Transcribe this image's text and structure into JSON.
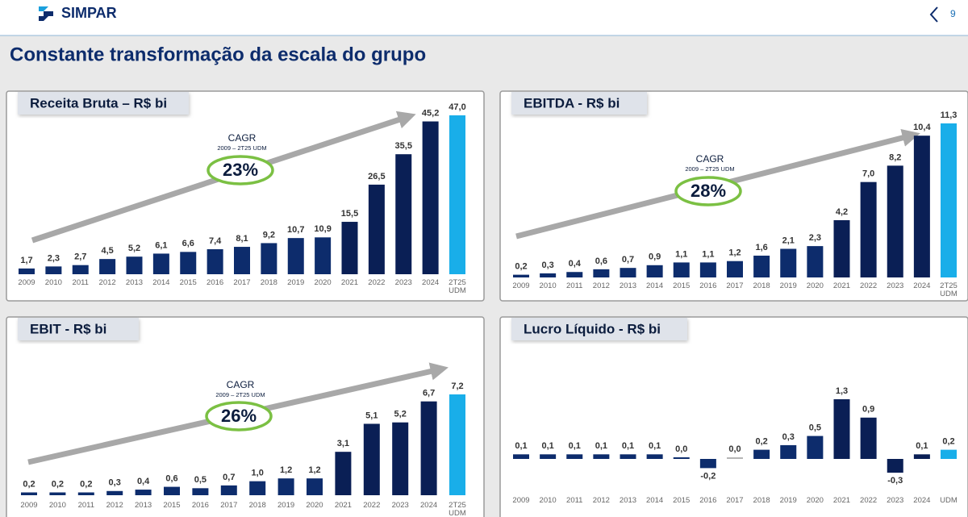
{
  "page": {
    "logo": "SIMPAR",
    "page_number": "9",
    "title": "Constante transformação da escala do grupo"
  },
  "chart_data": [
    {
      "type": "bar",
      "title": "Receita Bruta – R$ bi",
      "categories": [
        "2009",
        "2010",
        "2011",
        "2012",
        "2013",
        "2014",
        "2015",
        "2016",
        "2017",
        "2018",
        "2019",
        "2020",
        "2021",
        "2022",
        "2023",
        "2024",
        "2T25 UDM"
      ],
      "values": [
        1.7,
        2.3,
        2.7,
        4.5,
        5.2,
        6.1,
        6.6,
        7.4,
        8.1,
        9.2,
        10.7,
        10.9,
        15.5,
        26.5,
        35.5,
        45.2,
        47.0
      ],
      "value_labels": [
        "1,7",
        "2,3",
        "2,7",
        "4,5",
        "5,2",
        "6,1",
        "6,6",
        "7,4",
        "8,1",
        "9,2",
        "10,7",
        "10,9",
        "15,5",
        "26,5",
        "35,5",
        "45,2",
        "47,0"
      ],
      "colors": [
        "#0d2c6c",
        "#0d2c6c",
        "#0d2c6c",
        "#0d2c6c",
        "#0d2c6c",
        "#0d2c6c",
        "#0d2c6c",
        "#0d2c6c",
        "#0d2c6c",
        "#0d2c6c",
        "#0d2c6c",
        "#0d2c6c",
        "#0a1f55",
        "#0a1f55",
        "#0a1f55",
        "#0a1f55",
        "#19aee9"
      ],
      "annotation": {
        "label": "CAGR",
        "period": "2009 – 2T25 UDM",
        "value": "23%"
      }
    },
    {
      "type": "bar",
      "title": "EBITDA - R$ bi",
      "categories": [
        "2009",
        "2010",
        "2011",
        "2012",
        "2013",
        "2014",
        "2015",
        "2016",
        "2017",
        "2018",
        "2019",
        "2020",
        "2021",
        "2022",
        "2023",
        "2024",
        "2T25 UDM"
      ],
      "values": [
        0.2,
        0.3,
        0.4,
        0.6,
        0.7,
        0.9,
        1.1,
        1.1,
        1.2,
        1.6,
        2.1,
        2.3,
        4.2,
        7.0,
        8.2,
        10.4,
        11.3
      ],
      "value_labels": [
        "0,2",
        "0,3",
        "0,4",
        "0,6",
        "0,7",
        "0,9",
        "1,1",
        "1,1",
        "1,2",
        "1,6",
        "2,1",
        "2,3",
        "4,2",
        "7,0",
        "8,2",
        "10,4",
        "11,3"
      ],
      "colors": [
        "#0d2c6c",
        "#0d2c6c",
        "#0d2c6c",
        "#0d2c6c",
        "#0d2c6c",
        "#0d2c6c",
        "#0d2c6c",
        "#0d2c6c",
        "#0d2c6c",
        "#0d2c6c",
        "#0d2c6c",
        "#0d2c6c",
        "#0a1f55",
        "#0a1f55",
        "#0a1f55",
        "#0a1f55",
        "#19aee9"
      ],
      "annotation": {
        "label": "CAGR",
        "period": "2009 – 2T25 UDM",
        "value": "28%"
      }
    },
    {
      "type": "bar",
      "title": "EBIT - R$ bi",
      "categories": [
        "2009",
        "2010",
        "2011",
        "2012",
        "2013",
        "2015",
        "2016",
        "2017",
        "2018",
        "2019",
        "2020",
        "2021",
        "2022",
        "2023",
        "2024",
        "2T25 UDM"
      ],
      "values": [
        0.2,
        0.2,
        0.2,
        0.3,
        0.4,
        0.6,
        0.5,
        0.7,
        1.0,
        1.2,
        1.2,
        3.1,
        5.1,
        5.2,
        6.7,
        7.2
      ],
      "value_labels": [
        "0,2",
        "0,2",
        "0,2",
        "0,3",
        "0,4",
        "0,6",
        "0,5",
        "0,7",
        "1,0",
        "1,2",
        "1,2",
        "3,1",
        "5,1",
        "5,2",
        "6,7",
        "7,2"
      ],
      "colors": [
        "#0d2c6c",
        "#0d2c6c",
        "#0d2c6c",
        "#0d2c6c",
        "#0d2c6c",
        "#0d2c6c",
        "#0d2c6c",
        "#0d2c6c",
        "#0d2c6c",
        "#0d2c6c",
        "#0d2c6c",
        "#0a1f55",
        "#0a1f55",
        "#0a1f55",
        "#0a1f55",
        "#19aee9"
      ],
      "annotation": {
        "label": "CAGR",
        "period": "2009 – 2T25 UDM",
        "value": "26%"
      }
    },
    {
      "type": "bar",
      "title": "Lucro Líquido - R$ bi",
      "categories": [
        "2009",
        "2010",
        "2011",
        "2012",
        "2013",
        "2014",
        "2015",
        "2016",
        "2017",
        "2018",
        "2019",
        "2020",
        "2021",
        "2022",
        "2023",
        "2024",
        "UDM"
      ],
      "values": [
        0.1,
        0.1,
        0.1,
        0.1,
        0.1,
        0.1,
        0.0,
        -0.2,
        0.0,
        0.2,
        0.3,
        0.5,
        1.3,
        0.9,
        -0.3,
        0.1,
        0.2
      ],
      "value_labels": [
        "0,1",
        "0,1",
        "0,1",
        "0,1",
        "0,1",
        "0,1",
        "0,0",
        "-0,2",
        "0,0",
        "0,2",
        "0,3",
        "0,5",
        "1,3",
        "0,9",
        "-0,3",
        "0,1",
        "0,2"
      ],
      "colors": [
        "#0d2c6c",
        "#0d2c6c",
        "#0d2c6c",
        "#0d2c6c",
        "#0d2c6c",
        "#0d2c6c",
        "#0d2c6c",
        "#0d2c6c",
        "#b5b5b5",
        "#0d2c6c",
        "#0d2c6c",
        "#0d2c6c",
        "#0a1f55",
        "#0a1f55",
        "#0a1f55",
        "#0a1f55",
        "#19aee9"
      ]
    }
  ]
}
